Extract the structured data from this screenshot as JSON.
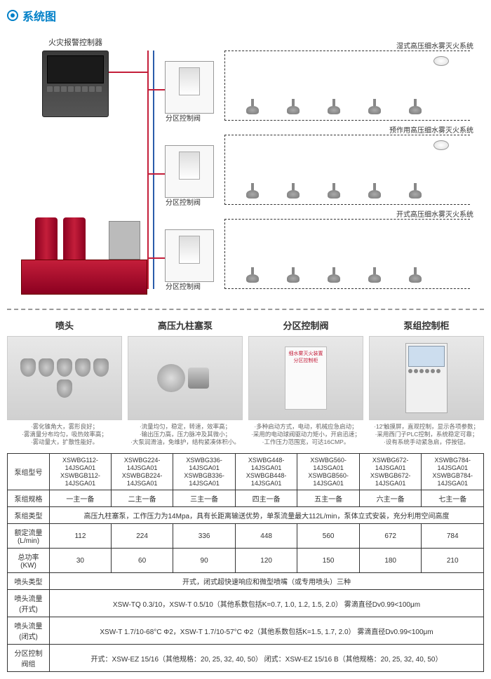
{
  "section_title": "系统图",
  "diagram": {
    "alarm_controller_label": "火灾报警控制器",
    "zone_valve_label": "分区控制阀",
    "branches": [
      {
        "label": "湿式高压细水雾灭火系统"
      },
      {
        "label": "预作用高压细水雾灭火系统"
      },
      {
        "label": "开式高压细水雾灭火系统"
      }
    ]
  },
  "components": [
    {
      "title": "喷头",
      "desc": "·雾化锥角大，雾形良好；\n·雾滴量分布均匀，吸热效率高；\n·雾动量大，扩散性能好。"
    },
    {
      "title": "高压九柱塞泵",
      "desc": "·流量均匀，稳定，转速，效率高；\n·输出压力高，压力脉冲及其微小；\n·大泵润滑油，免维护，结构紧凑体积小。"
    },
    {
      "title": "分区控制阀",
      "desc": "·多种启动方式，电动，机械应急启动；\n·采用的电动球阀驱动力矩小，开启迅速；\n·工作压力范围宽，可达16CMP。",
      "cabinet_text": "细水雾灭火装置\n分区控制柜"
    },
    {
      "title": "泵组控制柜",
      "desc": "·12'触摸屏，直观控制，显示各项参数；\n·采用西门子PLC控制，系统稳定可靠；\n·设有系统手动紧急启，停按钮。"
    }
  ],
  "table": {
    "headers": [
      "泵组型号",
      "泵组规格",
      "泵组类型",
      "额定流量\n(L/min)",
      "总功率\n(KW)",
      "喷头类型",
      "喷头流量\n(开式)",
      "喷头流量\n(闭式)",
      "分区控制\n阀组"
    ],
    "model_codes": [
      "XSWBG112-14JSGA01\nXSWBGB112-14JSGA01",
      "XSWBG224-14JSGA01\nXSWBGB224-14JSGA01",
      "XSWBG336-14JSGA01\nXSWBGB336-14JSGA01",
      "XSWBG448-14JSGA01\nXSWBGB448-14JSGA01",
      "XSWBG560-14JSGA01\nXSWBGB560-14JSGA01",
      "XSWBG672-14JSGA01\nXSWBGB672-14JSGA01",
      "XSWBG784-14JSGA01\nXSWBGB784-14JSGA01"
    ],
    "specs": [
      "一主一备",
      "二主一备",
      "三主一备",
      "四主一备",
      "五主一备",
      "六主一备",
      "七主一备"
    ],
    "type_desc": "高压九柱塞泵，工作压力为14Mpa，具有长距离输送优势，单泵流量最大112L/min，泵体立式安装，充分利用空间高度",
    "flow_rates": [
      "112",
      "224",
      "336",
      "448",
      "560",
      "672",
      "784"
    ],
    "powers": [
      "30",
      "60",
      "90",
      "120",
      "150",
      "180",
      "210"
    ],
    "nozzle_type": "开式，闭式超快速响应和微型喷嘴（或专用喷头）三种",
    "nozzle_flow_open": "XSW-TQ  0.3/10，XSW-T  0.5/10（其他系数包括K=0.7, 1.0, 1.2, 1.5, 2.0）   雾滴直径Dv0.99<100μm",
    "nozzle_flow_closed": "XSW-T  1.7/10-68°C  Φ2，XSW-T  1.7/10-57°C  Φ2（其他系数包括K=1.5, 1.7, 2.0）   雾滴直径Dv0.99<100μm",
    "valve_group": "开式：XSW-EZ  15/16（其他规格：20, 25, 32, 40, 50）   闭式：XSW-EZ  15/16 B（其他规格：20, 25, 32, 40, 50）"
  },
  "colors": {
    "primary_blue": "#0080c8",
    "wire_red": "#c41e3a",
    "wire_blue": "#2a5caa",
    "pump_red": "#8b0020"
  }
}
